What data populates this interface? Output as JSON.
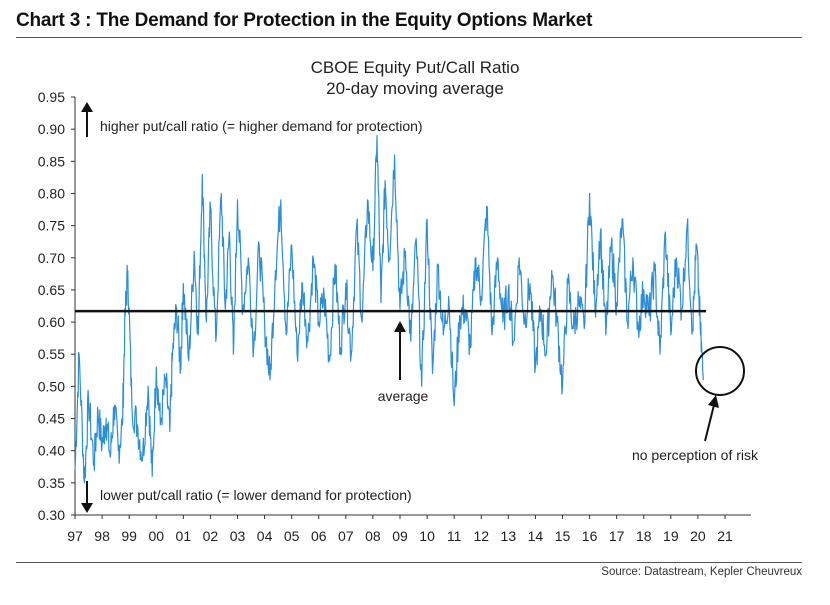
{
  "heading": "Chart 3 : The Demand for Protection in the Equity Options Market",
  "source": "Source: Datastream, Kepler Cheuvreux",
  "colors": {
    "series": "#2b8fd6",
    "average_line": "#111111",
    "axis": "#333333"
  },
  "chart_data": {
    "type": "line",
    "title": "CBOE Equity Put/Call Ratio",
    "subtitle": "20-day moving average",
    "xlabel": "",
    "ylabel": "",
    "x_tick_labels": [
      "97",
      "98",
      "99",
      "00",
      "01",
      "02",
      "03",
      "04",
      "05",
      "06",
      "07",
      "08",
      "09",
      "10",
      "11",
      "12",
      "13",
      "14",
      "15",
      "16",
      "17",
      "18",
      "19",
      "20",
      "21"
    ],
    "y_tick_labels": [
      "0.30",
      "0.35",
      "0.40",
      "0.45",
      "0.50",
      "0.55",
      "0.60",
      "0.65",
      "0.70",
      "0.75",
      "0.80",
      "0.85",
      "0.90",
      "0.95"
    ],
    "xlim": [
      1997,
      2021
    ],
    "ylim": [
      0.3,
      0.95
    ],
    "grid": false,
    "average": 0.617,
    "series": [
      {
        "x": [
          1997.0,
          1997.15,
          1997.35,
          1997.5,
          1997.7,
          1997.85,
          1998.0,
          1998.15,
          1998.3,
          1998.45,
          1998.6,
          1998.75,
          1998.85,
          1998.95,
          1999.1,
          1999.3,
          1999.5,
          1999.7,
          1999.85,
          2000.0,
          2000.15,
          2000.35,
          2000.5,
          2000.6,
          2000.75,
          2000.9,
          2001.0,
          2001.2,
          2001.4,
          2001.55,
          2001.7,
          2001.85,
          2002.0,
          2002.2,
          2002.4,
          2002.55,
          2002.7,
          2002.85,
          2003.0,
          2003.2,
          2003.4,
          2003.6,
          2003.8,
          2004.0,
          2004.2,
          2004.4,
          2004.6,
          2004.8,
          2005.0,
          2005.2,
          2005.4,
          2005.6,
          2005.8,
          2006.0,
          2006.2,
          2006.4,
          2006.6,
          2006.8,
          2007.0,
          2007.2,
          2007.4,
          2007.6,
          2007.8,
          2008.0,
          2008.15,
          2008.3,
          2008.45,
          2008.6,
          2008.8,
          2009.0,
          2009.2,
          2009.4,
          2009.6,
          2009.8,
          2010.0,
          2010.2,
          2010.4,
          2010.6,
          2010.8,
          2011.0,
          2011.2,
          2011.4,
          2011.6,
          2011.8,
          2012.0,
          2012.2,
          2012.4,
          2012.6,
          2012.8,
          2013.0,
          2013.2,
          2013.4,
          2013.6,
          2013.8,
          2014.0,
          2014.2,
          2014.4,
          2014.6,
          2014.8,
          2015.0,
          2015.2,
          2015.4,
          2015.6,
          2015.8,
          2016.0,
          2016.2,
          2016.4,
          2016.6,
          2016.8,
          2017.0,
          2017.2,
          2017.4,
          2017.6,
          2017.8,
          2018.0,
          2018.2,
          2018.4,
          2018.6,
          2018.8,
          2019.0,
          2019.2,
          2019.4,
          2019.6,
          2019.8,
          2019.95,
          2020.1,
          2020.2
        ],
        "y": [
          0.37,
          0.55,
          0.35,
          0.48,
          0.38,
          0.46,
          0.41,
          0.45,
          0.39,
          0.47,
          0.4,
          0.44,
          0.61,
          0.68,
          0.47,
          0.44,
          0.39,
          0.5,
          0.36,
          0.53,
          0.44,
          0.51,
          0.43,
          0.55,
          0.62,
          0.53,
          0.66,
          0.54,
          0.71,
          0.58,
          0.83,
          0.6,
          0.78,
          0.57,
          0.8,
          0.62,
          0.74,
          0.55,
          0.79,
          0.62,
          0.7,
          0.56,
          0.72,
          0.6,
          0.51,
          0.68,
          0.79,
          0.58,
          0.72,
          0.55,
          0.66,
          0.57,
          0.7,
          0.6,
          0.64,
          0.54,
          0.69,
          0.56,
          0.66,
          0.55,
          0.75,
          0.6,
          0.79,
          0.68,
          0.89,
          0.63,
          0.82,
          0.7,
          0.86,
          0.62,
          0.71,
          0.57,
          0.73,
          0.5,
          0.76,
          0.52,
          0.69,
          0.58,
          0.64,
          0.47,
          0.61,
          0.62,
          0.56,
          0.7,
          0.64,
          0.78,
          0.58,
          0.7,
          0.6,
          0.65,
          0.57,
          0.7,
          0.6,
          0.66,
          0.53,
          0.62,
          0.55,
          0.68,
          0.6,
          0.5,
          0.66,
          0.59,
          0.63,
          0.59,
          0.8,
          0.62,
          0.74,
          0.58,
          0.72,
          0.63,
          0.76,
          0.6,
          0.7,
          0.59,
          0.65,
          0.61,
          0.68,
          0.55,
          0.74,
          0.58,
          0.7,
          0.62,
          0.75,
          0.59,
          0.72,
          0.58,
          0.51
        ]
      }
    ],
    "annotations": {
      "up_arrow_text": "higher put/call ratio (= higher demand for protection)",
      "down_arrow_text": "lower put/call ratio (= lower demand for protection)",
      "average_label": "average",
      "risk_label": "no perception of risk"
    }
  }
}
